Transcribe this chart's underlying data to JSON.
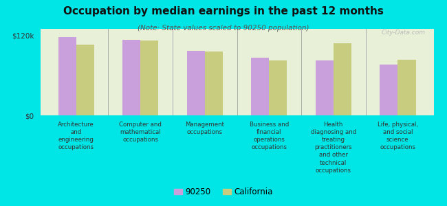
{
  "title": "Occupation by median earnings in the past 12 months",
  "subtitle": "(Note: State values scaled to 90250 population)",
  "categories": [
    "Architecture\nand\nengineering\noccupations",
    "Computer and\nmathematical\noccupations",
    "Management\noccupations",
    "Business and\nfinancial\noperations\noccupations",
    "Health\ndiagnosing and\ntreating\npractitioners\nand other\ntechnical\noccupations",
    "Life, physical,\nand social\nscience\noccupations"
  ],
  "values_90250": [
    118000,
    113000,
    97000,
    87000,
    83000,
    76000
  ],
  "values_california": [
    106000,
    112000,
    96000,
    83000,
    108000,
    84000
  ],
  "color_90250": "#c9a0dc",
  "color_california": "#c8cc7e",
  "background_color": "#00e5e5",
  "plot_bg_color": "#e8f0d8",
  "ylim": [
    0,
    130000
  ],
  "yticks": [
    0,
    120000
  ],
  "ytick_labels": [
    "$0",
    "$120k"
  ],
  "legend_labels": [
    "90250",
    "California"
  ],
  "watermark": "City-Data.com",
  "bar_width": 0.28
}
